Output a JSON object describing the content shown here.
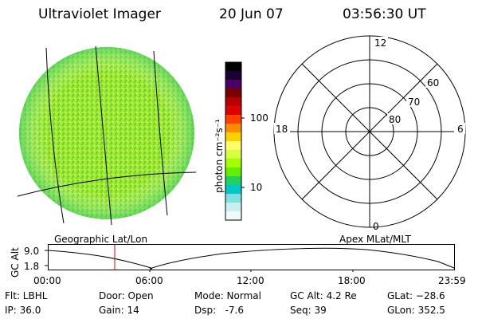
{
  "header": {
    "instrument": "Ultraviolet Imager",
    "date": "20 Jun 07",
    "time": "03:56:30 UT"
  },
  "left_panel": {
    "caption": "Geographic Lat/Lon"
  },
  "right_panel": {
    "caption": "Apex MLat/MLT",
    "mlt_labels": {
      "top": "12",
      "left": "18",
      "right": "6",
      "bottom": "0"
    },
    "mlat_labels": [
      "60",
      "70",
      "80"
    ]
  },
  "colorbar": {
    "unit_label": "photon cm⁻²s⁻¹",
    "ticks": [
      "100",
      "10"
    ],
    "colors": [
      "#000000",
      "#1a0033",
      "#4b0066",
      "#7a0000",
      "#b40000",
      "#e10000",
      "#ff4000",
      "#ff8c00",
      "#ffd000",
      "#ffff66",
      "#d8ff40",
      "#a0ff00",
      "#60f000",
      "#20d060",
      "#00c8c8",
      "#80e0e0",
      "#c8f0f0",
      "#f0f8f8"
    ]
  },
  "timeline": {
    "y_axis_label": "GC Alt",
    "y_ticks": [
      "9.0",
      "1.8"
    ],
    "x_ticks": [
      "00:00",
      "06:00",
      "12:00",
      "18:00",
      "23:59"
    ],
    "current_marker_color": "#e00000"
  },
  "info": {
    "filter": "Flt: LBHL",
    "ip": "IP: 36.0",
    "door": "Door: Open",
    "gain": "Gain: 14",
    "mode": "Mode: Normal",
    "dsp": "Dsp:   -7.6",
    "gc_alt": "GC Alt: 4.2 Re",
    "seq": "Seq: 39",
    "glat": "GLat: −28.6",
    "glon": "GLon: 352.5"
  }
}
